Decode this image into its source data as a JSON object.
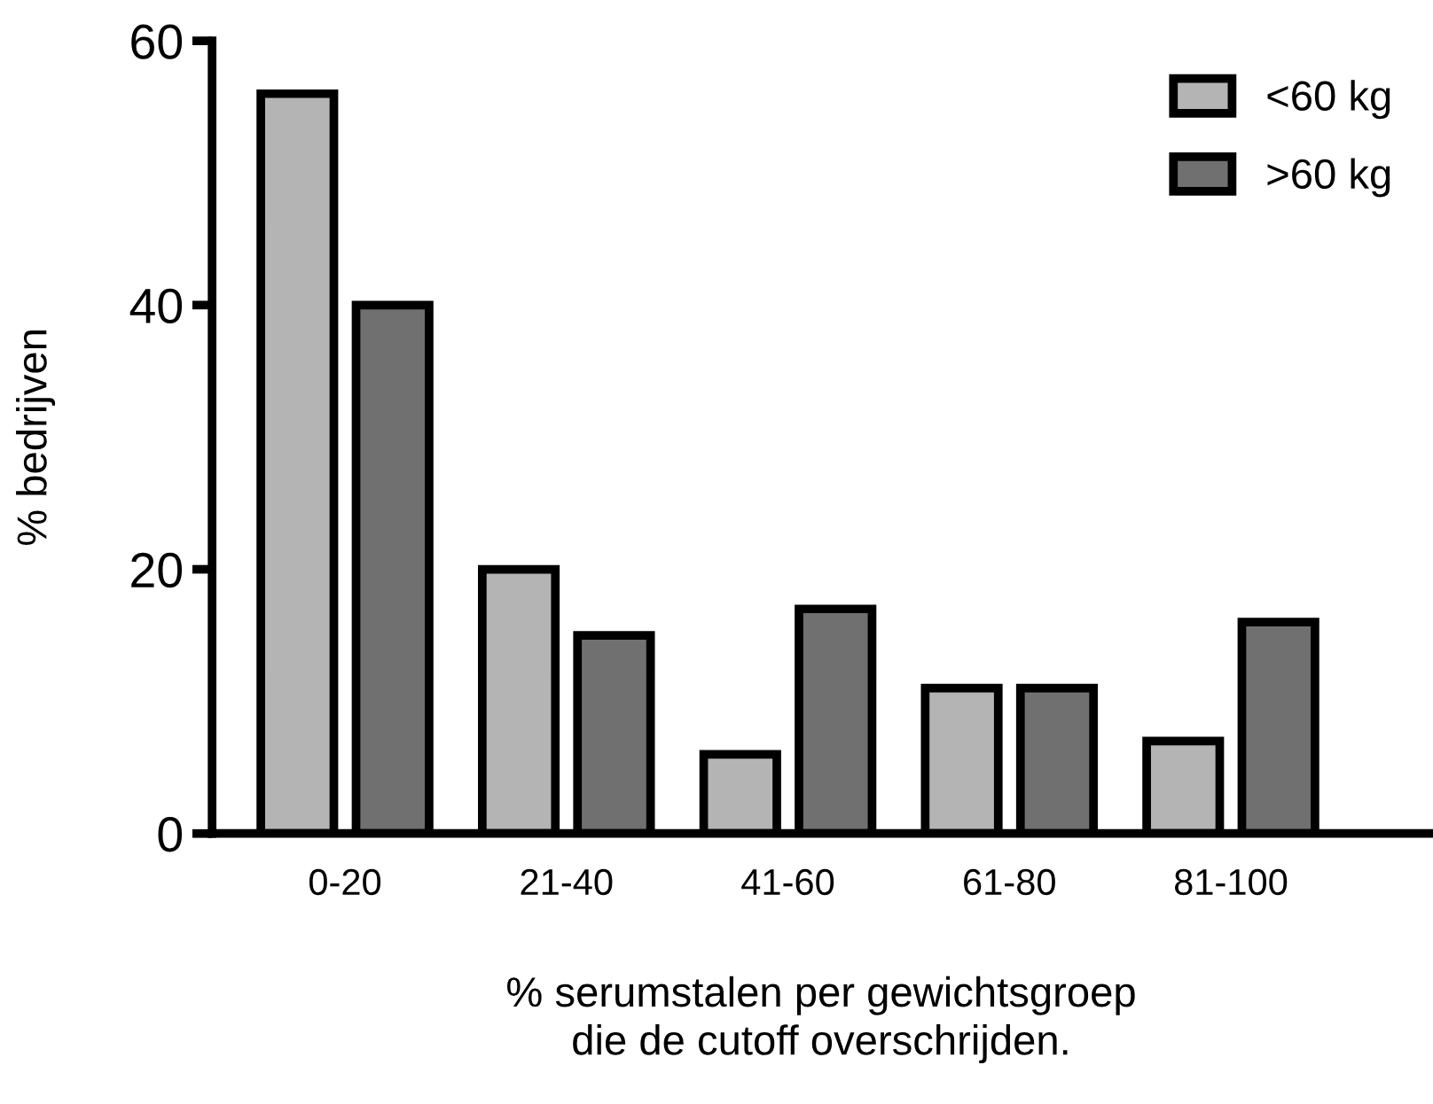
{
  "chart_data": {
    "type": "bar",
    "xlabel": "% serumstalen per gewichtsgroep\ndie de cutoff overschrijden.",
    "ylabel": "% bedrijven",
    "categories": [
      "0-20",
      "21-40",
      "41-60",
      "61-80",
      "81-100"
    ],
    "series": [
      {
        "name": "<60 kg",
        "color": "#b4b4b4",
        "values": [
          56,
          20,
          6,
          11,
          7
        ]
      },
      {
        "name": ">60 kg",
        "color": "#707070",
        "values": [
          40,
          15,
          17,
          11,
          16
        ]
      }
    ],
    "ylim": [
      0,
      60
    ],
    "yticks": [
      0,
      20,
      40,
      60
    ],
    "grid": false,
    "legend": "top right"
  }
}
